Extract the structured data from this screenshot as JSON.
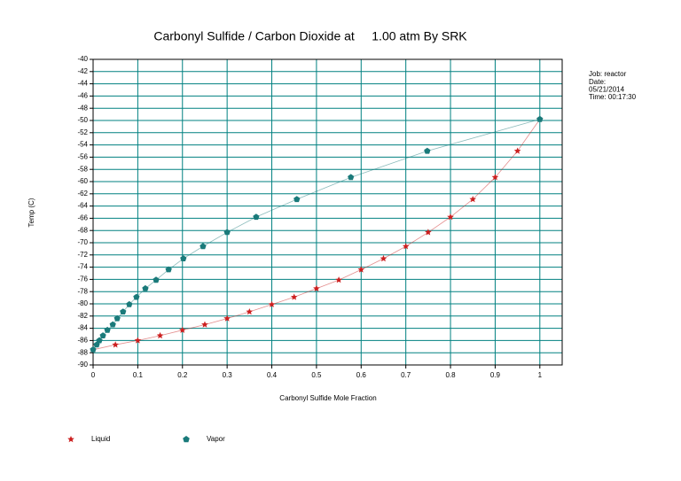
{
  "chart_data": {
    "type": "scatter",
    "title": "Carbonyl Sulfide / Carbon Dioxide at     1.00 atm By SRK",
    "x_label": "Carbonyl Sulfide Mole Fraction",
    "y_label": "Temp (C)",
    "annotations": [
      "Job: reactor",
      "Date:",
      "05/21/2014",
      "Time: 00:17:30"
    ],
    "xlim": [
      0,
      1.05
    ],
    "ylim": [
      -90,
      -40
    ],
    "xticks": [
      0,
      0.1,
      0.2,
      0.3,
      0.4,
      0.5,
      0.6,
      0.7,
      0.8,
      0.9,
      1
    ],
    "yticks": [
      -90,
      -88,
      -86,
      -84,
      -82,
      -80,
      -78,
      -76,
      -74,
      -72,
      -70,
      -68,
      -66,
      -64,
      -62,
      -60,
      -58,
      -56,
      -54,
      -52,
      -50,
      -48,
      -46,
      -44,
      -42,
      -40
    ],
    "grid": true,
    "grid_color": "#008080",
    "legend": "bottom",
    "series": [
      {
        "name": "Liquid",
        "color": "#cc2020",
        "marker": "star",
        "x": [
          0,
          0.05,
          0.1,
          0.15,
          0.2,
          0.25,
          0.3,
          0.35,
          0.4,
          0.45,
          0.5,
          0.55,
          0.6,
          0.65,
          0.7,
          0.75,
          0.8,
          0.85,
          0.9,
          0.95,
          1
        ],
        "values": [
          -87.5,
          -86.7,
          -86.0,
          -85.2,
          -84.3,
          -83.4,
          -82.4,
          -81.3,
          -80.1,
          -78.9,
          -77.5,
          -76.1,
          -74.4,
          -72.6,
          -70.6,
          -68.3,
          -65.8,
          -62.9,
          -59.3,
          -55.0,
          -49.8
        ]
      },
      {
        "name": "Vapor",
        "color": "#1a7a7a",
        "marker": "pentagon",
        "x": [
          0,
          0.008,
          0.014,
          0.022,
          0.032,
          0.044,
          0.054,
          0.067,
          0.081,
          0.097,
          0.117,
          0.141,
          0.169,
          0.202,
          0.246,
          0.3,
          0.365,
          0.456,
          0.577,
          0.748,
          1
        ],
        "values": [
          -87.5,
          -86.7,
          -86.0,
          -85.2,
          -84.3,
          -83.4,
          -82.4,
          -81.3,
          -80.1,
          -78.9,
          -77.5,
          -76.1,
          -74.4,
          -72.6,
          -70.6,
          -68.3,
          -65.8,
          -62.9,
          -59.3,
          -55.0,
          -49.8
        ]
      }
    ]
  }
}
